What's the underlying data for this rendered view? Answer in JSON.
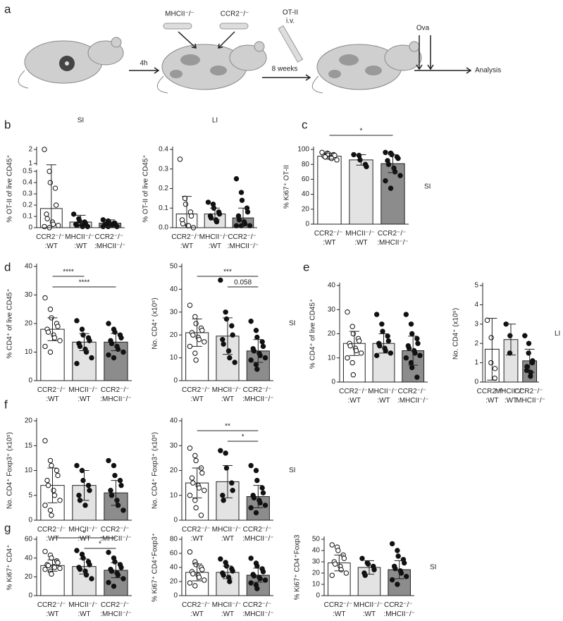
{
  "panel_labels": [
    "a",
    "b",
    "c",
    "d",
    "e",
    "f",
    "g"
  ],
  "schematic": {
    "bone_1": "MHCII⁻/⁻",
    "bone_2": "CCR2⁻/⁻",
    "injection": "OT-II",
    "route": "i.v.",
    "step_1": "4h",
    "step_2": "8 weeks",
    "treatment": "Ova",
    "endpoint": "Analysis"
  },
  "chart_data": [
    {
      "type": "bar",
      "title": "SI",
      "ylabel": "% OT-II of live CD45⁺",
      "categories": [
        "CCR2⁻/⁻ :WT",
        "MHCII⁻/⁻ :WT",
        "CCR2⁻/⁻ :MHCII⁻/⁻"
      ],
      "colors": [
        "#ffffff",
        "#e3e3e3",
        "#8c8c8c"
      ],
      "values": [
        0.17,
        0.05,
        0.04
      ],
      "errors": [
        0.75,
        0.06,
        0.03
      ],
      "points": [
        [
          2,
          0.5,
          0.4,
          0.35,
          0.2,
          0.12,
          0.08,
          0.05,
          0.03,
          0.02,
          0.01,
          0
        ],
        [
          0.12,
          0.08,
          0.06,
          0.05,
          0.04,
          0.03,
          0.02,
          0.02,
          0.01,
          0.01
        ],
        [
          0.07,
          0.06,
          0.05,
          0.04,
          0.04,
          0.03,
          0.03,
          0.02,
          0.02,
          0.01,
          0.01,
          0.01
        ]
      ],
      "ylim": [
        0,
        2
      ],
      "axis_break": [
        0.5,
        1
      ],
      "yticks": [
        0,
        0.1,
        0.2,
        0.3,
        0.4,
        0.5,
        1,
        2
      ]
    },
    {
      "type": "bar",
      "title": "LI",
      "ylabel": "% OT-II of live CD45⁺",
      "categories": [
        "CCR2⁻/⁻ :WT",
        "MHCII⁻/⁻ :WT",
        "CCR2⁻/⁻ :MHCII⁻/⁻"
      ],
      "colors": [
        "#ffffff",
        "#e3e3e3",
        "#8c8c8c"
      ],
      "values": [
        0.07,
        0.07,
        0.05
      ],
      "errors": [
        0.09,
        0.03,
        0.05
      ],
      "points": [
        [
          0.35,
          0.15,
          0.12,
          0.08,
          0.06,
          0.04,
          0.02,
          0.01,
          0.01,
          0
        ],
        [
          0.13,
          0.12,
          0.1,
          0.08,
          0.07,
          0.06,
          0.05,
          0.04,
          0.03
        ],
        [
          0.25,
          0.18,
          0.14,
          0.1,
          0.08,
          0.06,
          0.04,
          0.03,
          0.02,
          0.01,
          0.01,
          0.01
        ]
      ],
      "ylim": [
        0,
        0.4
      ],
      "yticks": [
        {
          "value": 0,
          "label": "0.0"
        },
        0.1,
        0.2,
        0.3,
        0.4
      ]
    },
    {
      "type": "bar",
      "ylabel": "% Ki67⁺ OT-II",
      "side_label": "SI",
      "categories": [
        "CCR2⁻/⁻ :WT",
        "MHCII⁻/⁻ :WT",
        "CCR2⁻/⁻ :MHCII⁻/⁻"
      ],
      "colors": [
        "#ffffff",
        "#e3e3e3",
        "#8c8c8c"
      ],
      "values": [
        91,
        86,
        81
      ],
      "errors": [
        4,
        7,
        12
      ],
      "points": [
        [
          96,
          95,
          94,
          93,
          92,
          91,
          90,
          89,
          88,
          86
        ],
        [
          93,
          92,
          86,
          80,
          77
        ],
        [
          96,
          95,
          93,
          90,
          88,
          85,
          80,
          75,
          70,
          65,
          58,
          48
        ]
      ],
      "ylim": [
        0,
        100
      ],
      "yticks": [
        0,
        20,
        40,
        60,
        80,
        100
      ],
      "significance": [
        {
          "from": 0,
          "to": 2,
          "label": "*"
        }
      ]
    },
    {
      "type": "bar",
      "ylabel": "% CD4⁺ of live CD45⁺",
      "categories": [
        "CCR2⁻/⁻ :WT",
        "MHCII⁻/⁻ :WT",
        "CCR2⁻/⁻ :MHCII⁻/⁻"
      ],
      "colors": [
        "#ffffff",
        "#e3e3e3",
        "#8c8c8c"
      ],
      "values": [
        18,
        13.5,
        13.5
      ],
      "errors": [
        4,
        3,
        3
      ],
      "points": [
        [
          29,
          25,
          22,
          20,
          19,
          18,
          17,
          16,
          15,
          14,
          12,
          10
        ],
        [
          21,
          18,
          16,
          15,
          14,
          13,
          12,
          11,
          10,
          8,
          6
        ],
        [
          20,
          18,
          17,
          16,
          15,
          14,
          13,
          12,
          11,
          10,
          9,
          8
        ]
      ],
      "ylim": [
        0,
        40
      ],
      "yticks": [
        0,
        10,
        20,
        30,
        40
      ],
      "significance": [
        {
          "from": 0,
          "to": 1,
          "label": "****"
        },
        {
          "from": 0,
          "to": 2,
          "label": "****"
        }
      ]
    },
    {
      "type": "bar",
      "ylabel": "No. CD4⁺ (x10⁵)",
      "side_label": "SI",
      "categories": [
        "CCR2⁻/⁻ :WT",
        "MHCII⁻/⁻ :WT",
        "CCR2⁻/⁻ :MHCII⁻/⁻"
      ],
      "colors": [
        "#ffffff",
        "#e3e3e3",
        "#8c8c8c"
      ],
      "values": [
        21,
        19.5,
        13
      ],
      "errors": [
        6,
        8,
        5
      ],
      "points": [
        [
          33,
          28,
          25,
          23,
          22,
          21,
          20,
          19,
          18,
          17,
          15,
          12,
          9
        ],
        [
          44,
          30,
          27,
          24,
          20,
          18,
          16,
          13,
          10,
          8
        ],
        [
          26,
          22,
          19,
          17,
          15,
          14,
          13,
          12,
          11,
          10,
          9,
          7,
          5
        ]
      ],
      "ylim": [
        0,
        50
      ],
      "yticks": [
        0,
        10,
        20,
        30,
        40,
        50
      ],
      "significance": [
        {
          "from": 0,
          "to": 2,
          "label": "***"
        },
        {
          "from": 1,
          "to": 2,
          "label": "0.058"
        }
      ]
    },
    {
      "type": "bar",
      "ylabel": "% CD4⁺ of live CD45⁺",
      "categories": [
        "CCR2⁻/⁻ :WT",
        "MHCII⁻/⁻ :WT",
        "CCR2⁻/⁻ :MHCII⁻/⁻"
      ],
      "colors": [
        "#ffffff",
        "#e3e3e3",
        "#8c8c8c"
      ],
      "values": [
        16,
        16,
        13
      ],
      "errors": [
        5,
        4,
        6
      ],
      "points": [
        [
          29,
          23,
          20,
          18,
          17,
          16,
          15,
          14,
          13,
          12,
          10,
          8,
          3
        ],
        [
          28,
          24,
          21,
          19,
          17,
          16,
          15,
          14,
          13,
          12,
          11
        ],
        [
          28,
          24,
          20,
          18,
          16,
          15,
          14,
          13,
          12,
          11,
          10,
          8,
          6,
          2
        ]
      ],
      "ylim": [
        0,
        40
      ],
      "yticks": [
        0,
        10,
        20,
        30,
        40
      ]
    },
    {
      "type": "bar",
      "ylabel": "No. CD4⁺ (x10⁵)",
      "side_label": "LI",
      "categories": [
        "CCR2⁻/⁻ :WT",
        "MHCII⁻/⁻ :WT",
        "CCR2⁻/⁻ :MHCII⁻/⁻"
      ],
      "colors": [
        "#ffffff",
        "#e3e3e3",
        "#8c8c8c"
      ],
      "values": [
        1.7,
        2.2,
        1.1
      ],
      "errors": [
        1.6,
        0.8,
        0.6
      ],
      "points": [
        [
          3.2,
          2.3,
          1.0,
          0.7,
          0.2
        ],
        [
          3.0,
          2.4,
          1.5
        ],
        [
          2.4,
          2.0,
          1.5,
          1.1,
          1.0,
          0.8,
          0.6,
          0.5,
          0.3
        ]
      ],
      "ylim": [
        0,
        5
      ],
      "yticks": [
        0,
        1,
        2,
        3,
        4,
        5
      ]
    },
    {
      "type": "bar",
      "ylabel": "No. CD4⁺ Foxp3⁺ (x10⁵)",
      "categories": [
        "CCR2⁻/⁻ :WT",
        "MHCII⁻/⁻ :WT",
        "CCR2⁻/⁻ :MHCII⁻/⁻"
      ],
      "colors": [
        "#ffffff",
        "#e3e3e3",
        "#8c8c8c"
      ],
      "values": [
        7,
        7,
        5.5
      ],
      "errors": [
        3.5,
        3,
        2.5
      ],
      "points": [
        [
          16,
          12,
          11,
          10,
          9,
          8,
          7,
          6,
          5,
          4,
          3,
          2,
          1
        ],
        [
          11,
          10,
          8,
          7,
          6,
          5,
          4,
          3
        ],
        [
          12,
          11,
          9,
          8,
          7,
          6,
          5,
          4,
          3,
          2
        ]
      ],
      "ylim": [
        0,
        20
      ],
      "yticks": [
        0,
        5,
        10,
        15,
        20
      ]
    },
    {
      "type": "bar",
      "ylabel": "No. CD4⁺ Foxp3⁺ (x10⁵)",
      "side_label": "SI",
      "categories": [
        "CCR2⁻/⁻ :WT",
        "MHCII⁻/⁻ :WT",
        "CCR2⁻/⁻ :MHCII⁻/⁻"
      ],
      "colors": [
        "#ffffff",
        "#e3e3e3",
        "#8c8c8c"
      ],
      "values": [
        15,
        15.5,
        9.5
      ],
      "errors": [
        6,
        6.5,
        4.5
      ],
      "points": [
        [
          29,
          26,
          24,
          21,
          19,
          17,
          15,
          14,
          13,
          12,
          10,
          8,
          5,
          2
        ],
        [
          28,
          27,
          21,
          15,
          12,
          10,
          8
        ],
        [
          22,
          20,
          16,
          13,
          11,
          10,
          9,
          8,
          7,
          6,
          5,
          3
        ]
      ],
      "ylim": [
        0,
        40
      ],
      "yticks": [
        0,
        10,
        20,
        30,
        40
      ],
      "significance": [
        {
          "from": 0,
          "to": 2,
          "label": "**"
        },
        {
          "from": 1,
          "to": 2,
          "label": "*"
        }
      ]
    },
    {
      "type": "bar",
      "ylabel": "% Ki67⁺ CD4⁺",
      "categories": [
        "CCR2⁻/⁻ :WT",
        "MHCII⁻/⁻ :WT",
        "CCR2⁻/⁻ :MHCII⁻/⁻"
      ],
      "colors": [
        "#ffffff",
        "#e3e3e3",
        "#8c8c8c"
      ],
      "values": [
        32,
        31,
        27
      ],
      "errors": [
        6,
        8,
        8
      ],
      "points": [
        [
          47,
          43,
          40,
          37,
          35,
          33,
          32,
          31,
          30,
          29,
          28,
          26,
          23
        ],
        [
          48,
          44,
          40,
          36,
          33,
          30,
          28,
          26,
          22,
          18
        ],
        [
          46,
          40,
          36,
          33,
          30,
          28,
          26,
          24,
          22,
          18,
          14,
          10
        ]
      ],
      "ylim": [
        0,
        60
      ],
      "yticks": [
        0,
        20,
        40,
        60
      ],
      "significance": [
        {
          "from": 0,
          "to": 2,
          "label": "*"
        },
        {
          "from": 1,
          "to": 2,
          "label": "*"
        }
      ]
    },
    {
      "type": "bar",
      "ylabel": "% Ki67⁺ CD4⁺Foxp3⁺",
      "categories": [
        "CCR2⁻/⁻ :WT",
        "MHCII⁻/⁻ :WT",
        "CCR2⁻/⁻ :MHCII⁻/⁻"
      ],
      "colors": [
        "#ffffff",
        "#e3e3e3",
        "#8c8c8c"
      ],
      "values": [
        33,
        33,
        29
      ],
      "errors": [
        12,
        9,
        10
      ],
      "points": [
        [
          62,
          48,
          44,
          40,
          37,
          34,
          31,
          29,
          26,
          22,
          18,
          14
        ],
        [
          52,
          47,
          42,
          38,
          35,
          32,
          29,
          26,
          20
        ],
        [
          53,
          46,
          42,
          38,
          34,
          30,
          28,
          26,
          24,
          22,
          18,
          15,
          10
        ]
      ],
      "ylim": [
        0,
        80
      ],
      "yticks": [
        0,
        20,
        40,
        60,
        80
      ]
    },
    {
      "type": "bar",
      "ylabel": "% Ki67⁺ CD4⁺Foxp3",
      "side_label": "SI",
      "categories": [
        "CCR2⁻/⁻ :WT",
        "MHCII⁻/⁻ :WT",
        "CCR2⁻/⁻ :MHCII⁻/⁻"
      ],
      "colors": [
        "#ffffff",
        "#e3e3e3",
        "#8c8c8c"
      ],
      "values": [
        29,
        25,
        23
      ],
      "errors": [
        7,
        6,
        8
      ],
      "points": [
        [
          45,
          43,
          40,
          36,
          33,
          30,
          28,
          26,
          23,
          20,
          18
        ],
        [
          33,
          29,
          28,
          26,
          23,
          20,
          18
        ],
        [
          46,
          40,
          35,
          32,
          29,
          26,
          24,
          22,
          20,
          17,
          14,
          10
        ]
      ],
      "ylim": [
        0,
        50
      ],
      "yticks": [
        0,
        10,
        20,
        30,
        40,
        50
      ]
    }
  ]
}
